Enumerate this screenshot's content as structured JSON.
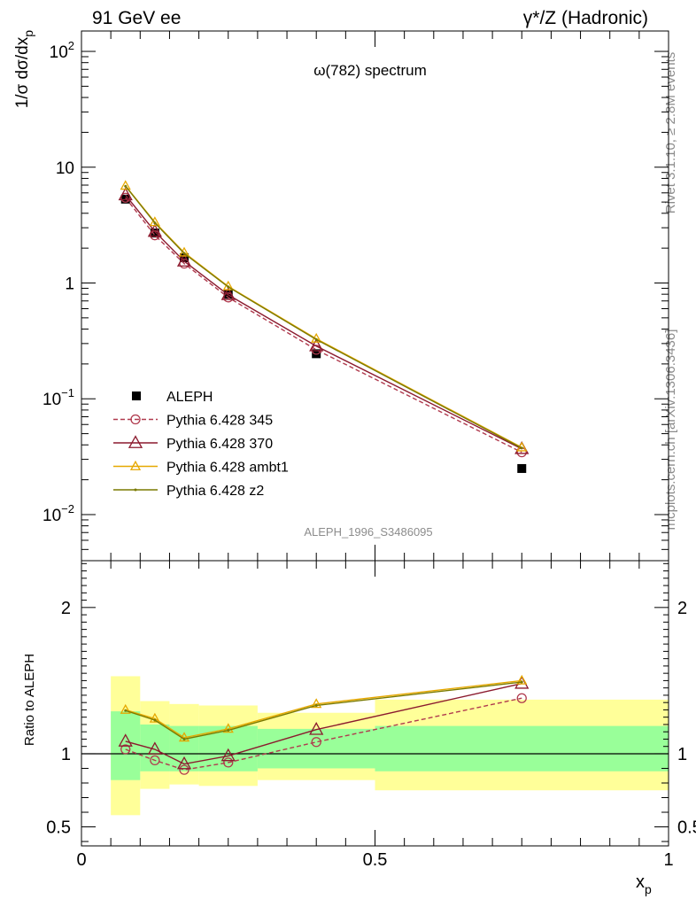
{
  "header": {
    "left": "91 GeV ee",
    "right": "γ*/Z (Hadronic)"
  },
  "side_labels": {
    "rivet": "Rivet 3.1.10, ≥ 2.8M events",
    "mcplots": "mcplots.cern.ch [arXiv:1306.3436]"
  },
  "analysis_tag": "ALEPH_1996_S3486095",
  "colors": {
    "data": "#000000",
    "p345": "#b03a4e",
    "p370": "#8b1a2e",
    "ambt1": "#e6a800",
    "z2": "#7a7a00",
    "band_inner": "#99ff99",
    "band_outer": "#ffff99"
  },
  "chart_data": [
    {
      "type": "scatter",
      "title": "ω(782) spectrum",
      "xlabel": "x",
      "xlabel_sub": "p",
      "ylabel": "1/σ dσ/dx",
      "ylabel_sub": "p",
      "yscale": "log",
      "ylim": [
        0.004,
        150
      ],
      "xlim": [
        0,
        1
      ],
      "y_ticks": [
        {
          "value": 0.01,
          "base": "10",
          "exp": "−2"
        },
        {
          "value": 0.1,
          "base": "10",
          "exp": "−1"
        },
        {
          "value": 1,
          "base": "1",
          "exp": ""
        },
        {
          "value": 10,
          "base": "10",
          "exp": ""
        },
        {
          "value": 100,
          "base": "10",
          "exp": "2"
        }
      ],
      "legend_position": "lower-left",
      "series": [
        {
          "name": "ALEPH",
          "x": [
            0.075,
            0.125,
            0.175,
            0.25,
            0.4,
            0.75
          ],
          "values": [
            5.3,
            2.7,
            1.65,
            0.8,
            0.245,
            0.025
          ]
        },
        {
          "name": "Pythia 6.428 345",
          "x": [
            0.075,
            0.125,
            0.175,
            0.25,
            0.4,
            0.75
          ],
          "values": [
            5.45,
            2.58,
            1.47,
            0.75,
            0.265,
            0.0345
          ]
        },
        {
          "name": "Pythia 6.428 370",
          "x": [
            0.075,
            0.125,
            0.175,
            0.25,
            0.4,
            0.75
          ],
          "values": [
            5.75,
            2.78,
            1.54,
            0.79,
            0.285,
            0.037
          ]
        },
        {
          "name": "Pythia 6.428 ambt1",
          "x": [
            0.075,
            0.125,
            0.175,
            0.25,
            0.4,
            0.75
          ],
          "values": [
            6.9,
            3.35,
            1.83,
            0.935,
            0.33,
            0.038
          ]
        },
        {
          "name": "Pythia 6.428 z2",
          "x": [
            0.075,
            0.125,
            0.175,
            0.25,
            0.4,
            0.75
          ],
          "values": [
            6.85,
            3.3,
            1.8,
            0.925,
            0.325,
            0.0375
          ]
        }
      ]
    },
    {
      "type": "line",
      "ylabel": "Ratio to ALEPH",
      "ylim": [
        0.37,
        2.32
      ],
      "xlim": [
        0,
        1
      ],
      "y_ticks": [
        0.5,
        1,
        2
      ],
      "x_ticks": [
        {
          "value": 0,
          "label": "0"
        },
        {
          "value": 0.5,
          "label": "0.5"
        },
        {
          "value": 1,
          "label": "1"
        }
      ],
      "bands": [
        {
          "x0": 0.05,
          "x1": 0.1,
          "inner": [
            0.82,
            1.29
          ],
          "outer": [
            0.58,
            1.53
          ]
        },
        {
          "x0": 0.1,
          "x1": 0.15,
          "inner": [
            0.88,
            1.2
          ],
          "outer": [
            0.76,
            1.36
          ]
        },
        {
          "x0": 0.15,
          "x1": 0.2,
          "inner": [
            0.88,
            1.19
          ],
          "outer": [
            0.79,
            1.34
          ]
        },
        {
          "x0": 0.2,
          "x1": 0.3,
          "inner": [
            0.88,
            1.19
          ],
          "outer": [
            0.78,
            1.33
          ]
        },
        {
          "x0": 0.3,
          "x1": 0.5,
          "inner": [
            0.9,
            1.17
          ],
          "outer": [
            0.82,
            1.28
          ]
        },
        {
          "x0": 0.5,
          "x1": 1.0,
          "inner": [
            0.88,
            1.19
          ],
          "outer": [
            0.75,
            1.37
          ]
        }
      ],
      "series": [
        {
          "name": "Pythia 6.428 345",
          "x": [
            0.075,
            0.125,
            0.175,
            0.25,
            0.4,
            0.75
          ],
          "values": [
            1.03,
            0.955,
            0.89,
            0.94,
            1.08,
            1.38
          ]
        },
        {
          "name": "Pythia 6.428 370",
          "x": [
            0.075,
            0.125,
            0.175,
            0.25,
            0.4,
            0.75
          ],
          "values": [
            1.085,
            1.03,
            0.93,
            0.985,
            1.165,
            1.48
          ]
        },
        {
          "name": "Pythia 6.428 ambt1",
          "x": [
            0.075,
            0.125,
            0.175,
            0.25,
            0.4,
            0.75
          ],
          "values": [
            1.3,
            1.24,
            1.11,
            1.17,
            1.34,
            1.5
          ]
        },
        {
          "name": "Pythia 6.428 z2",
          "x": [
            0.075,
            0.125,
            0.175,
            0.25,
            0.4,
            0.75
          ],
          "values": [
            1.295,
            1.23,
            1.1,
            1.16,
            1.33,
            1.49
          ]
        }
      ]
    }
  ]
}
